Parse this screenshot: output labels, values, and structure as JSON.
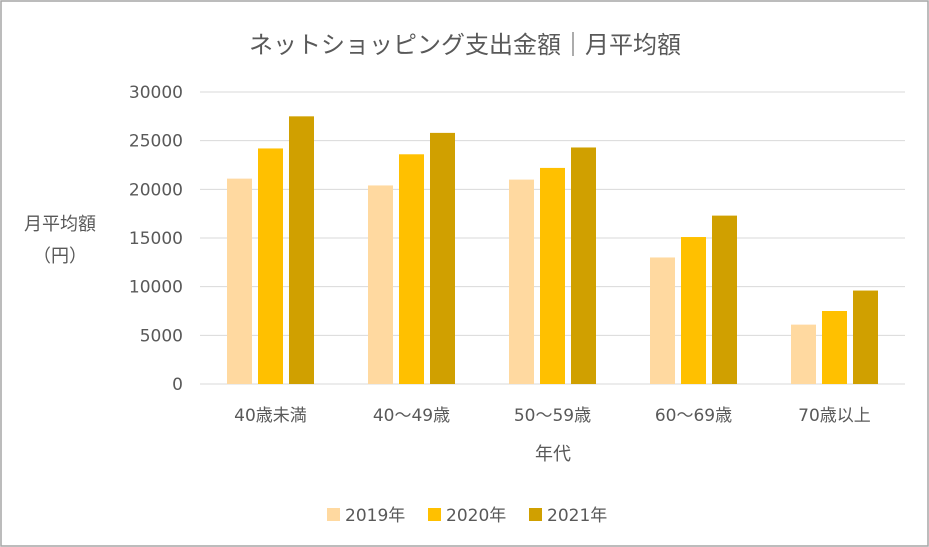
{
  "chart_data": {
    "type": "bar",
    "title": "ネットショッピング支出金額｜月平均額",
    "categories": [
      "40歳未満",
      "40～49歳",
      "50～59歳",
      "60～69歳",
      "70歳以上"
    ],
    "series": [
      {
        "name": "2019年",
        "values": [
          21100,
          20400,
          21000,
          13000,
          6100
        ],
        "color": "#FFD9A0"
      },
      {
        "name": "2020年",
        "values": [
          24200,
          23600,
          22200,
          15100,
          7500
        ],
        "color": "#FFC000"
      },
      {
        "name": "2021年",
        "values": [
          27500,
          25800,
          24300,
          17300,
          9600
        ],
        "color": "#D0A000"
      }
    ],
    "xlabel": "年代",
    "ylabel": "月平均額",
    "ylabel_unit": "（円）",
    "ylim": [
      0,
      30000
    ],
    "yticks": [
      0,
      5000,
      10000,
      15000,
      20000,
      25000,
      30000
    ],
    "grid": true,
    "legend": "bottom"
  },
  "colors": {
    "text": "#595959",
    "grid": "#D9D9D9",
    "border": "#A6A6A6",
    "background": "#FFFFFF"
  }
}
